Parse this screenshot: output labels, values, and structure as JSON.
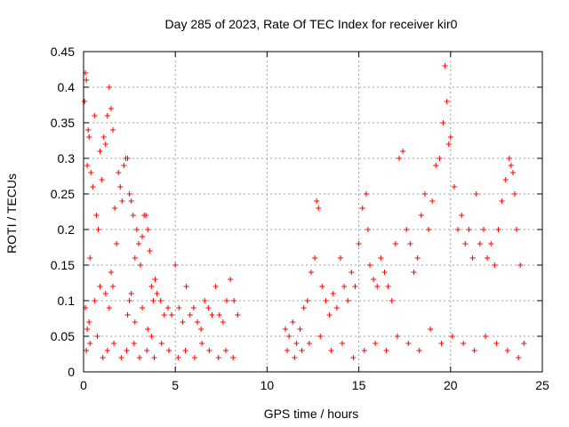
{
  "chart_data": {
    "type": "scatter",
    "title": "Day 285 of 2023, Rate Of TEC Index for receiver kir0",
    "xlabel": "GPS time / hours",
    "ylabel": "ROTI / TECUs",
    "xlim": [
      0,
      25
    ],
    "ylim": [
      0,
      0.45
    ],
    "x_ticks": [
      "0",
      "5",
      "10",
      "15",
      "20",
      "25"
    ],
    "y_ticks": [
      "0",
      "0.05",
      "0.1",
      "0.15",
      "0.2",
      "0.25",
      "0.3",
      "0.35",
      "0.4",
      "0.45"
    ],
    "grid": true,
    "marker": "+",
    "color": "#ff0000",
    "series": [
      {
        "x": [
          0.05,
          0.1,
          0.15,
          0.2,
          0.25,
          0.3,
          0.35,
          0.4,
          0.5,
          0.6,
          0.7,
          0.8,
          0.9,
          1.0,
          1.1,
          1.2,
          1.3,
          1.4,
          1.5,
          1.6,
          1.7,
          1.8,
          1.9,
          2.0,
          2.1,
          2.2,
          2.3,
          2.4,
          2.5,
          2.6,
          2.7,
          2.8,
          2.9,
          3.0,
          3.1,
          3.2,
          3.3,
          3.4,
          3.5,
          3.6,
          3.7,
          3.8,
          3.9,
          4.0,
          4.2,
          4.4,
          4.6,
          4.8,
          5.0,
          5.2,
          5.4,
          5.6,
          5.8,
          6.0,
          6.2,
          6.4,
          6.6,
          6.8,
          7.0,
          7.2,
          7.4,
          7.6,
          7.8,
          8.0,
          8.2,
          8.4,
          0.1,
          0.2,
          0.3,
          0.6,
          0.9,
          1.2,
          1.4,
          1.5,
          1.6,
          2.4,
          2.5,
          2.6,
          2.8,
          3.2,
          3.5,
          3.7,
          0.15,
          0.35,
          0.75,
          1.05,
          1.3,
          1.65,
          2.05,
          2.35,
          2.75,
          3.05,
          3.45,
          3.85,
          4.25,
          4.65,
          5.15,
          5.55,
          6.05,
          6.45,
          6.85,
          7.35,
          7.75,
          8.15
        ],
        "y": [
          0.38,
          0.42,
          0.41,
          0.29,
          0.34,
          0.33,
          0.16,
          0.28,
          0.26,
          0.36,
          0.22,
          0.2,
          0.31,
          0.27,
          0.33,
          0.32,
          0.36,
          0.4,
          0.37,
          0.34,
          0.23,
          0.18,
          0.28,
          0.26,
          0.24,
          0.29,
          0.3,
          0.3,
          0.25,
          0.24,
          0.22,
          0.16,
          0.2,
          0.18,
          0.15,
          0.19,
          0.22,
          0.22,
          0.2,
          0.17,
          0.12,
          0.1,
          0.13,
          0.11,
          0.1,
          0.08,
          0.09,
          0.08,
          0.15,
          0.09,
          0.07,
          0.12,
          0.08,
          0.09,
          0.07,
          0.06,
          0.1,
          0.09,
          0.08,
          0.12,
          0.08,
          0.07,
          0.1,
          0.13,
          0.1,
          0.08,
          0.09,
          0.06,
          0.07,
          0.1,
          0.12,
          0.11,
          0.09,
          0.14,
          0.12,
          0.08,
          0.1,
          0.11,
          0.07,
          0.09,
          0.06,
          0.05,
          0.03,
          0.04,
          0.05,
          0.02,
          0.03,
          0.04,
          0.02,
          0.03,
          0.04,
          0.02,
          0.03,
          0.02,
          0.04,
          0.03,
          0.02,
          0.03,
          0.02,
          0.04,
          0.03,
          0.02,
          0.03,
          0.02
        ]
      },
      {
        "x": [
          11.0,
          11.2,
          11.4,
          11.6,
          11.8,
          12.0,
          12.2,
          12.4,
          12.6,
          12.7,
          12.8,
          13.0,
          13.2,
          13.4,
          13.6,
          13.8,
          14.0,
          14.2,
          14.4,
          14.6,
          14.8,
          15.0,
          15.2,
          15.4,
          15.5,
          15.6,
          15.8,
          16.0,
          16.2,
          16.4,
          16.6,
          16.8,
          17.0,
          17.2,
          17.4,
          17.6,
          17.8,
          18.0,
          18.2,
          18.4,
          18.6,
          18.8,
          19.0,
          19.2,
          19.4,
          19.6,
          19.7,
          19.8,
          19.9,
          20.0,
          20.2,
          20.4,
          20.6,
          20.8,
          21.0,
          21.2,
          21.4,
          21.6,
          21.8,
          22.0,
          22.2,
          22.4,
          22.6,
          22.8,
          23.0,
          23.2,
          23.3,
          23.4,
          23.5,
          23.6,
          23.8,
          24.0,
          11.1,
          11.5,
          11.9,
          12.3,
          12.9,
          13.5,
          14.1,
          14.7,
          15.3,
          15.9,
          16.5,
          17.1,
          17.7,
          18.3,
          18.9,
          19.5,
          20.1,
          20.7,
          21.3,
          21.9,
          22.5,
          23.1,
          23.7
        ],
        "y": [
          0.06,
          0.05,
          0.07,
          0.04,
          0.06,
          0.09,
          0.1,
          0.14,
          0.16,
          0.24,
          0.23,
          0.12,
          0.1,
          0.08,
          0.11,
          0.09,
          0.16,
          0.12,
          0.1,
          0.14,
          0.12,
          0.18,
          0.23,
          0.25,
          0.2,
          0.15,
          0.13,
          0.12,
          0.16,
          0.14,
          0.12,
          0.1,
          0.18,
          0.3,
          0.31,
          0.2,
          0.18,
          0.14,
          0.16,
          0.22,
          0.25,
          0.2,
          0.24,
          0.29,
          0.3,
          0.35,
          0.43,
          0.38,
          0.32,
          0.33,
          0.26,
          0.2,
          0.22,
          0.18,
          0.2,
          0.16,
          0.25,
          0.18,
          0.2,
          0.16,
          0.18,
          0.15,
          0.2,
          0.24,
          0.27,
          0.3,
          0.29,
          0.28,
          0.25,
          0.2,
          0.15,
          0.04,
          0.03,
          0.02,
          0.03,
          0.04,
          0.05,
          0.03,
          0.04,
          0.02,
          0.03,
          0.04,
          0.03,
          0.05,
          0.04,
          0.03,
          0.06,
          0.04,
          0.05,
          0.04,
          0.03,
          0.05,
          0.04,
          0.03,
          0.02
        ]
      }
    ]
  }
}
